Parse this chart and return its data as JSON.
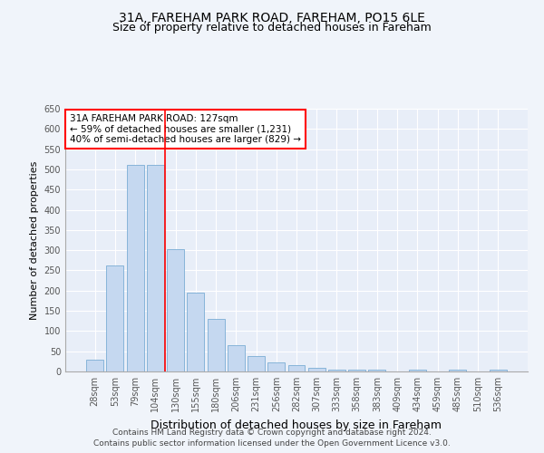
{
  "title_line1": "31A, FAREHAM PARK ROAD, FAREHAM, PO15 6LE",
  "title_line2": "Size of property relative to detached houses in Fareham",
  "xlabel": "Distribution of detached houses by size in Fareham",
  "ylabel": "Number of detached properties",
  "categories": [
    "28sqm",
    "53sqm",
    "79sqm",
    "104sqm",
    "130sqm",
    "155sqm",
    "180sqm",
    "206sqm",
    "231sqm",
    "256sqm",
    "282sqm",
    "307sqm",
    "333sqm",
    "358sqm",
    "383sqm",
    "409sqm",
    "434sqm",
    "459sqm",
    "485sqm",
    "510sqm",
    "536sqm"
  ],
  "values": [
    30,
    263,
    512,
    511,
    302,
    196,
    130,
    65,
    38,
    22,
    15,
    10,
    5,
    4,
    4,
    0,
    5,
    0,
    4,
    0,
    4
  ],
  "bar_color": "#c5d8f0",
  "bar_edge_color": "#7aadd4",
  "property_line_color": "red",
  "property_line_x": 3.5,
  "annotation_text": "31A FAREHAM PARK ROAD: 127sqm\n← 59% of detached houses are smaller (1,231)\n40% of semi-detached houses are larger (829) →",
  "annotation_box_facecolor": "white",
  "annotation_box_edgecolor": "red",
  "ylim": [
    0,
    650
  ],
  "yticks": [
    0,
    50,
    100,
    150,
    200,
    250,
    300,
    350,
    400,
    450,
    500,
    550,
    600,
    650
  ],
  "background_color": "#f0f4fa",
  "plot_bg_color": "#e8eef8",
  "grid_color": "white",
  "title_fontsize": 10,
  "subtitle_fontsize": 9,
  "xlabel_fontsize": 9,
  "ylabel_fontsize": 8,
  "tick_fontsize": 7,
  "annotation_fontsize": 7.5,
  "footer_fontsize": 6.5,
  "footer_line1": "Contains HM Land Registry data © Crown copyright and database right 2024.",
  "footer_line2": "Contains public sector information licensed under the Open Government Licence v3.0."
}
